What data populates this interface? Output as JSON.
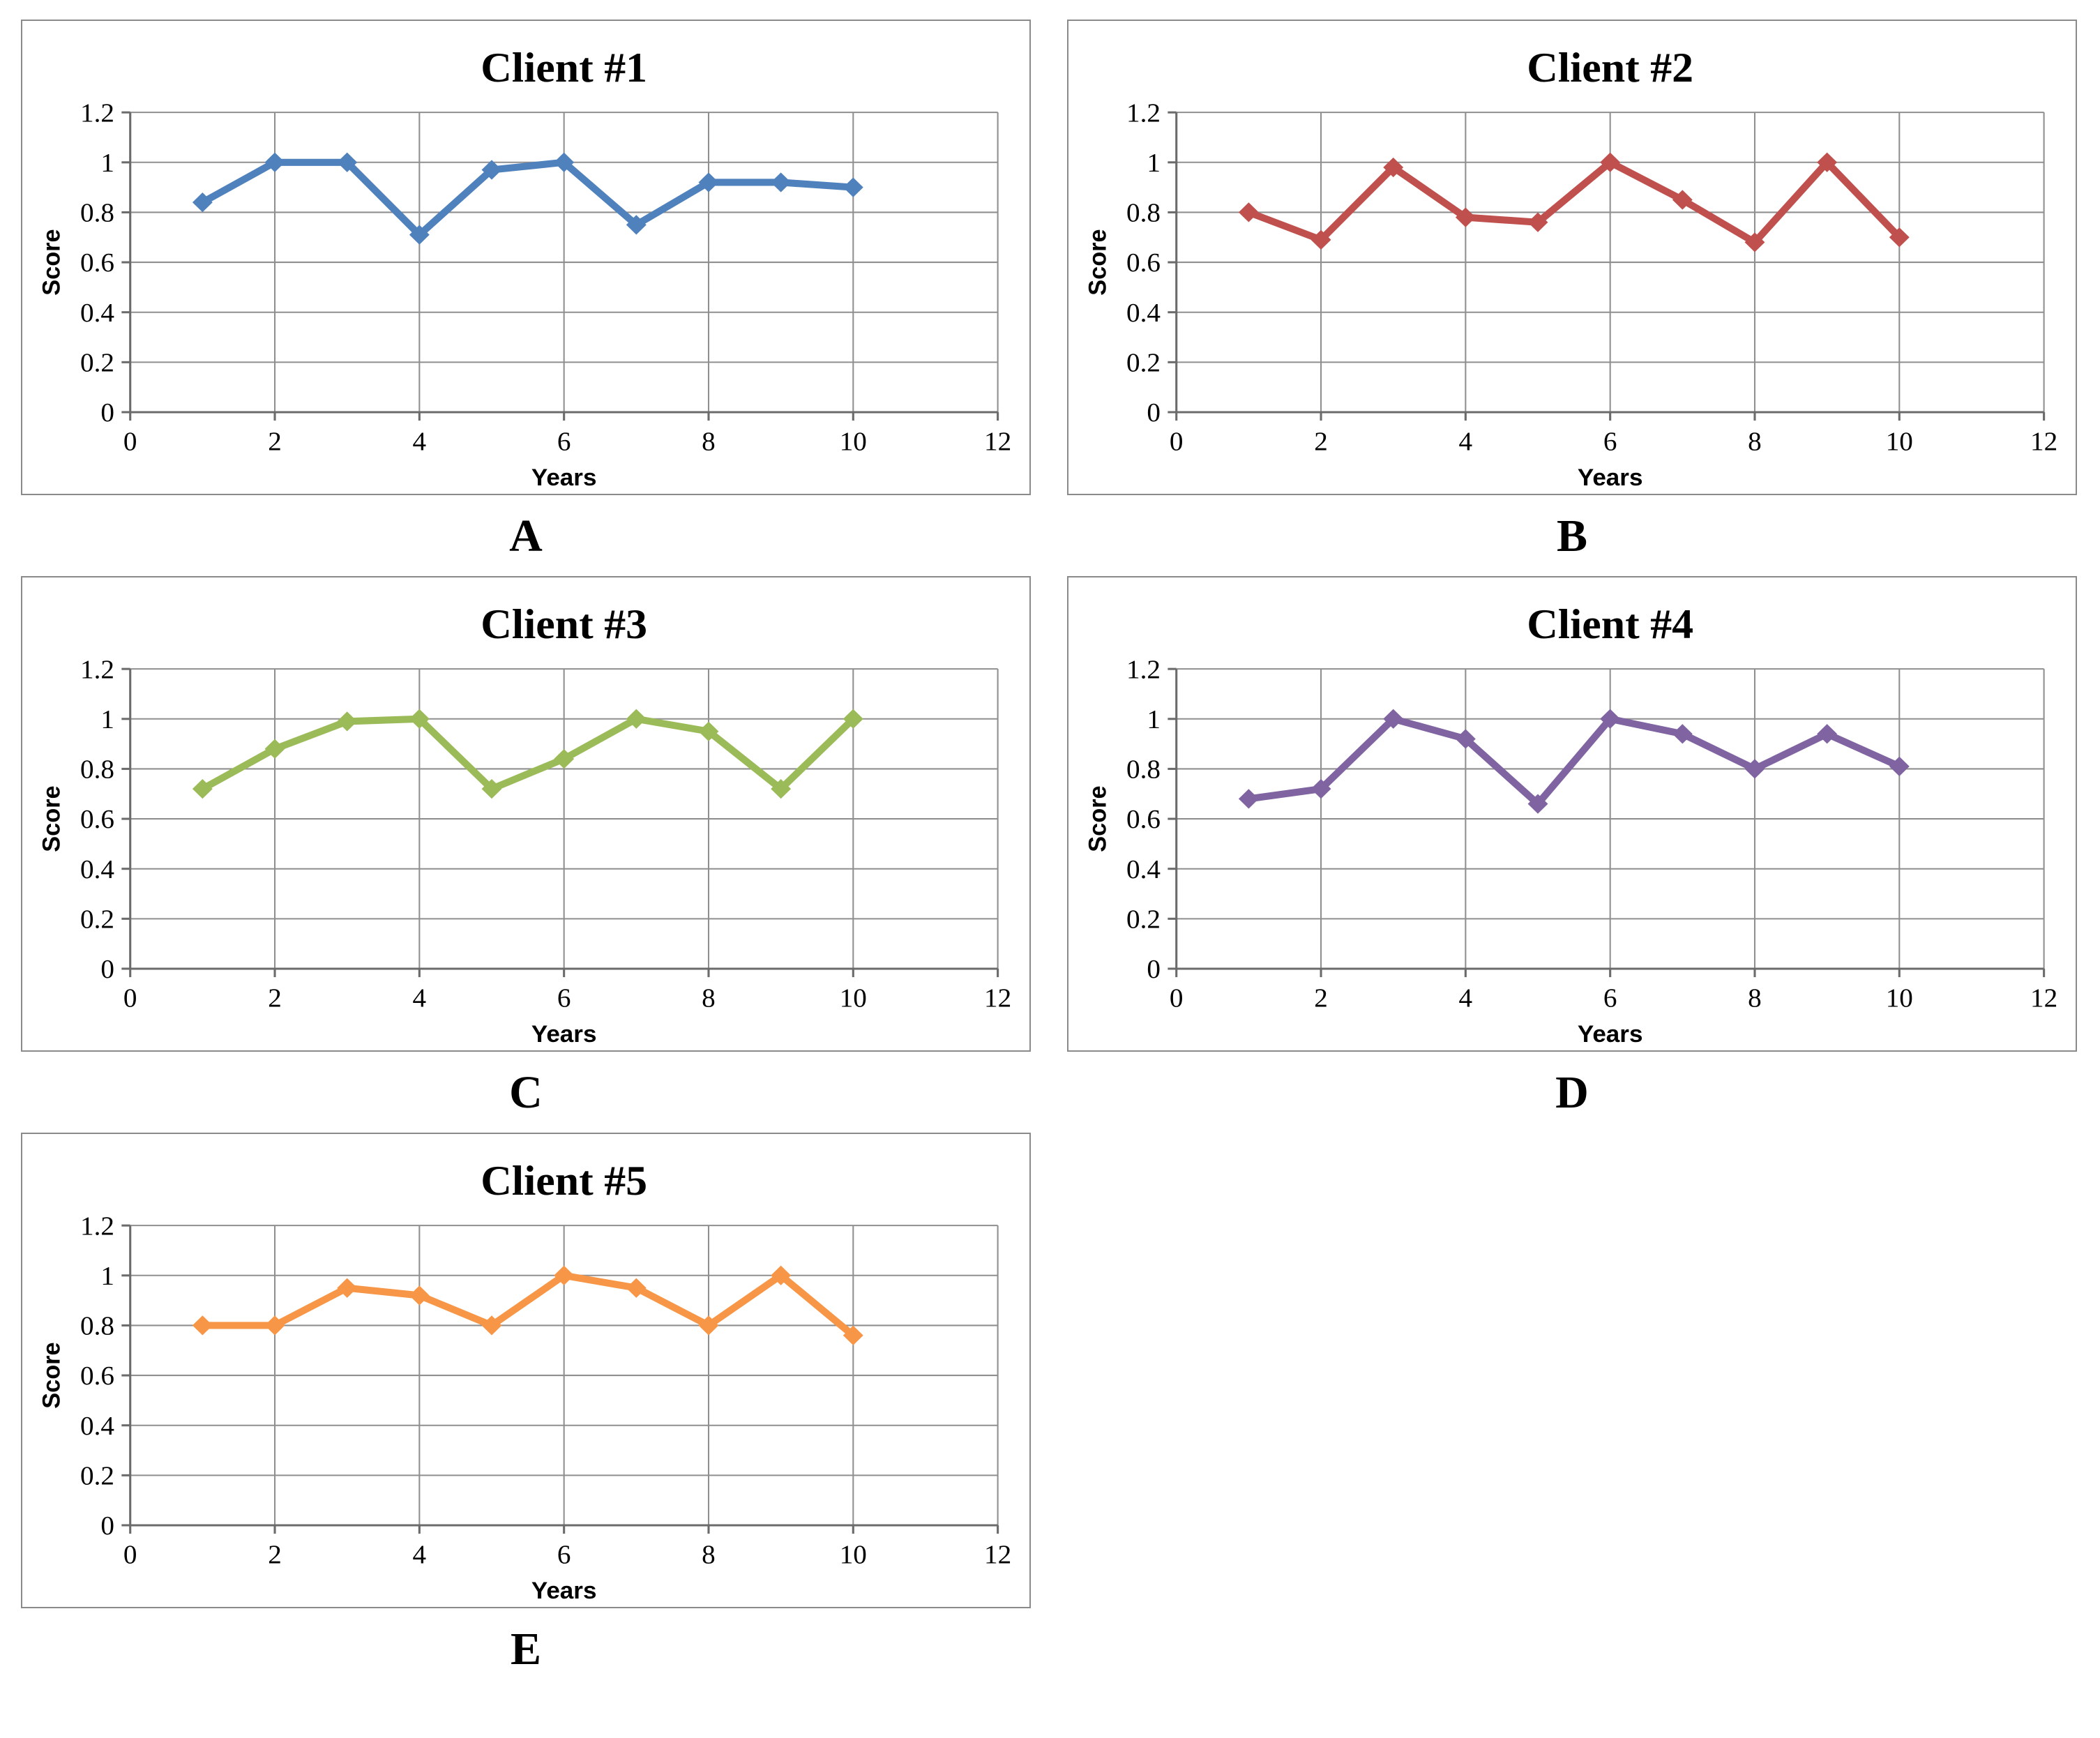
{
  "page": {
    "background": "#ffffff",
    "grid_color": "#8f8f8f",
    "axis_color": "#6b6b6b",
    "panel_border_color": "#8a8a8a",
    "text_color": "#000000"
  },
  "chart_data": [
    {
      "type": "line",
      "panel_label": "A",
      "title": "Client #1",
      "xlabel": "Years",
      "ylabel": "Score",
      "color": "#4F81BD",
      "marker": "diamond",
      "grid": true,
      "legend": "none",
      "x": [
        1,
        2,
        3,
        4,
        5,
        6,
        7,
        8,
        9,
        10
      ],
      "values": [
        0.84,
        1.0,
        1.0,
        0.71,
        0.97,
        1.0,
        0.75,
        0.92,
        0.92,
        0.9
      ],
      "xlim": [
        0,
        12
      ],
      "ylim": [
        0,
        1.2
      ],
      "xticks": [
        0,
        2,
        4,
        6,
        8,
        10,
        12
      ],
      "yticks": [
        0,
        0.2,
        0.4,
        0.6,
        0.8,
        1,
        1.2
      ]
    },
    {
      "type": "line",
      "panel_label": "B",
      "title": "Client #2",
      "xlabel": "Years",
      "ylabel": "Score",
      "color": "#C0504D",
      "marker": "diamond",
      "grid": true,
      "legend": "none",
      "x": [
        1,
        2,
        3,
        4,
        5,
        6,
        7,
        8,
        9,
        10
      ],
      "values": [
        0.8,
        0.69,
        0.98,
        0.78,
        0.76,
        1.0,
        0.85,
        0.68,
        1.0,
        0.7
      ],
      "xlim": [
        0,
        12
      ],
      "ylim": [
        0,
        1.2
      ],
      "xticks": [
        0,
        2,
        4,
        6,
        8,
        10,
        12
      ],
      "yticks": [
        0,
        0.2,
        0.4,
        0.6,
        0.8,
        1,
        1.2
      ]
    },
    {
      "type": "line",
      "panel_label": "C",
      "title": "Client #3",
      "xlabel": "Years",
      "ylabel": "Score",
      "color": "#9BBB59",
      "marker": "diamond",
      "grid": true,
      "legend": "none",
      "x": [
        1,
        2,
        3,
        4,
        5,
        6,
        7,
        8,
        9,
        10
      ],
      "values": [
        0.72,
        0.88,
        0.99,
        1.0,
        0.72,
        0.84,
        1.0,
        0.95,
        0.72,
        1.0
      ],
      "xlim": [
        0,
        12
      ],
      "ylim": [
        0,
        1.2
      ],
      "xticks": [
        0,
        2,
        4,
        6,
        8,
        10,
        12
      ],
      "yticks": [
        0,
        0.2,
        0.4,
        0.6,
        0.8,
        1,
        1.2
      ]
    },
    {
      "type": "line",
      "panel_label": "D",
      "title": "Client #4",
      "xlabel": "Years",
      "ylabel": "Score",
      "color": "#8064A2",
      "marker": "diamond",
      "grid": true,
      "legend": "none",
      "x": [
        1,
        2,
        3,
        4,
        5,
        6,
        7,
        8,
        9,
        10
      ],
      "values": [
        0.68,
        0.72,
        1.0,
        0.92,
        0.66,
        1.0,
        0.94,
        0.8,
        0.94,
        0.81
      ],
      "xlim": [
        0,
        12
      ],
      "ylim": [
        0,
        1.2
      ],
      "xticks": [
        0,
        2,
        4,
        6,
        8,
        10,
        12
      ],
      "yticks": [
        0,
        0.2,
        0.4,
        0.6,
        0.8,
        1,
        1.2
      ]
    },
    {
      "type": "line",
      "panel_label": "E",
      "title": "Client #5",
      "xlabel": "Years",
      "ylabel": "Score",
      "color": "#F79646",
      "marker": "diamond",
      "grid": true,
      "legend": "none",
      "x": [
        1,
        2,
        3,
        4,
        5,
        6,
        7,
        8,
        9,
        10
      ],
      "values": [
        0.8,
        0.8,
        0.95,
        0.92,
        0.8,
        1.0,
        0.95,
        0.8,
        1.0,
        0.76
      ],
      "xlim": [
        0,
        12
      ],
      "ylim": [
        0,
        1.2
      ],
      "xticks": [
        0,
        2,
        4,
        6,
        8,
        10,
        12
      ],
      "yticks": [
        0,
        0.2,
        0.4,
        0.6,
        0.8,
        1,
        1.2
      ]
    }
  ]
}
